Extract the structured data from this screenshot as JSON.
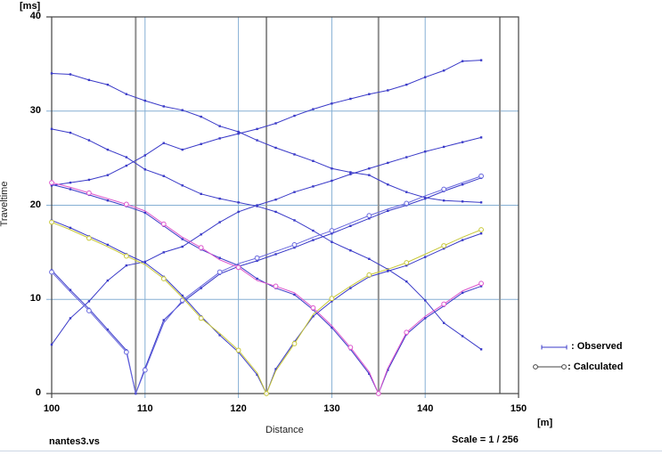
{
  "axis": {
    "y_unit": "[ms]",
    "y_title": "Traveltime",
    "x_title": "Distance",
    "x_unit": "[m]",
    "y_ticks": [
      0,
      10,
      20,
      30,
      40
    ],
    "x_ticks": [
      100,
      110,
      120,
      130,
      140,
      150
    ]
  },
  "footer": {
    "filename": "nantes3.vs",
    "scale_text": "Scale = 1 / 256"
  },
  "legend": {
    "observed_label": ": Observed",
    "calculated_label": ": Calculated"
  },
  "colors": {
    "observed": "#3a3ac8",
    "calc_109": "#6666dd",
    "calc_123": "#c8c838",
    "calc_135": "#dd55cc",
    "grid": "#85afd4",
    "source_line": "#909090",
    "axis": "#444444",
    "legend_calc_line": "#444444"
  },
  "chart_data": {
    "type": "line",
    "title": "",
    "xlabel": "Distance",
    "ylabel": "Traveltime",
    "x_unit": "[m]",
    "y_unit": "[ms]",
    "xlim": [
      100,
      150
    ],
    "ylim": [
      0,
      40
    ],
    "grid_x": [
      110,
      120,
      130,
      140
    ],
    "grid_y": [
      10,
      20,
      30
    ],
    "source_positions": [
      109,
      123,
      135,
      148
    ],
    "legend_position": "right-bottom-outside",
    "series": [
      {
        "name": "observed-offset-shot-left-near",
        "role": "observed",
        "points": [
          [
            100,
            5.2
          ],
          [
            102,
            8.0
          ],
          [
            104,
            9.8
          ],
          [
            106,
            12.0
          ],
          [
            108,
            13.6
          ],
          [
            110,
            14.0
          ],
          [
            112,
            15.0
          ],
          [
            114,
            15.6
          ],
          [
            116,
            16.9
          ],
          [
            118,
            18.2
          ],
          [
            120,
            19.3
          ],
          [
            122,
            20.0
          ],
          [
            124,
            20.6
          ],
          [
            126,
            21.4
          ],
          [
            128,
            22.0
          ],
          [
            130,
            22.6
          ],
          [
            132,
            23.3
          ],
          [
            134,
            23.9
          ],
          [
            136,
            24.5
          ],
          [
            138,
            25.1
          ],
          [
            140,
            25.7
          ],
          [
            142,
            26.2
          ],
          [
            144,
            26.7
          ],
          [
            146,
            27.2
          ]
        ]
      },
      {
        "name": "observed-offset-shot-left-far",
        "role": "observed",
        "points": [
          [
            100,
            22.1
          ],
          [
            102,
            22.4
          ],
          [
            104,
            22.7
          ],
          [
            106,
            23.2
          ],
          [
            108,
            24.2
          ],
          [
            110,
            25.3
          ],
          [
            112,
            26.6
          ],
          [
            114,
            25.9
          ],
          [
            116,
            26.5
          ],
          [
            118,
            27.1
          ],
          [
            120,
            27.6
          ],
          [
            122,
            28.1
          ],
          [
            124,
            28.7
          ],
          [
            126,
            29.5
          ],
          [
            128,
            30.2
          ],
          [
            130,
            30.8
          ],
          [
            132,
            31.3
          ],
          [
            134,
            31.8
          ],
          [
            136,
            32.2
          ],
          [
            138,
            32.8
          ],
          [
            140,
            33.6
          ],
          [
            142,
            34.3
          ],
          [
            144,
            35.3
          ],
          [
            146,
            35.4
          ]
        ]
      },
      {
        "name": "observed-shot-109",
        "role": "observed",
        "points": [
          [
            100,
            13.1
          ],
          [
            102,
            11.0
          ],
          [
            104,
            9.0
          ],
          [
            106,
            6.8
          ],
          [
            108,
            4.6
          ],
          [
            109,
            0
          ],
          [
            110,
            2.7
          ],
          [
            112,
            7.8
          ],
          [
            114,
            9.7
          ],
          [
            116,
            11.2
          ],
          [
            118,
            12.7
          ],
          [
            120,
            13.5
          ],
          [
            122,
            14.1
          ],
          [
            124,
            14.8
          ],
          [
            126,
            15.5
          ],
          [
            128,
            16.3
          ],
          [
            130,
            17.0
          ],
          [
            132,
            17.8
          ],
          [
            134,
            18.6
          ],
          [
            136,
            19.4
          ],
          [
            138,
            20.0
          ],
          [
            140,
            20.7
          ],
          [
            142,
            21.5
          ],
          [
            144,
            22.2
          ],
          [
            146,
            22.9
          ]
        ]
      },
      {
        "name": "observed-shot-123",
        "role": "observed",
        "points": [
          [
            100,
            18.4
          ],
          [
            102,
            17.6
          ],
          [
            104,
            16.7
          ],
          [
            106,
            15.8
          ],
          [
            108,
            14.8
          ],
          [
            110,
            13.9
          ],
          [
            112,
            12.4
          ],
          [
            114,
            10.4
          ],
          [
            116,
            8.2
          ],
          [
            118,
            6.2
          ],
          [
            120,
            4.4
          ],
          [
            122,
            2.0
          ],
          [
            123,
            0
          ],
          [
            124,
            2.6
          ],
          [
            126,
            5.5
          ],
          [
            128,
            8.2
          ],
          [
            130,
            9.8
          ],
          [
            132,
            11.2
          ],
          [
            134,
            12.4
          ],
          [
            136,
            13.0
          ],
          [
            138,
            13.6
          ],
          [
            140,
            14.5
          ],
          [
            142,
            15.4
          ],
          [
            144,
            16.3
          ],
          [
            146,
            17.0
          ]
        ]
      },
      {
        "name": "observed-shot-135",
        "role": "observed",
        "points": [
          [
            100,
            22.2
          ],
          [
            102,
            21.7
          ],
          [
            104,
            21.1
          ],
          [
            106,
            20.5
          ],
          [
            108,
            19.9
          ],
          [
            110,
            19.2
          ],
          [
            112,
            17.8
          ],
          [
            114,
            16.4
          ],
          [
            116,
            15.3
          ],
          [
            118,
            14.4
          ],
          [
            120,
            13.6
          ],
          [
            122,
            12.2
          ],
          [
            124,
            11.2
          ],
          [
            126,
            10.5
          ],
          [
            128,
            8.9
          ],
          [
            130,
            7.0
          ],
          [
            132,
            4.7
          ],
          [
            134,
            2.1
          ],
          [
            135,
            0
          ],
          [
            136,
            2.5
          ],
          [
            138,
            6.3
          ],
          [
            140,
            8.0
          ],
          [
            142,
            9.3
          ],
          [
            144,
            10.7
          ],
          [
            146,
            11.4
          ]
        ]
      },
      {
        "name": "observed-shot-148",
        "role": "observed",
        "points": [
          [
            100,
            28.1
          ],
          [
            102,
            27.7
          ],
          [
            104,
            26.9
          ],
          [
            106,
            25.9
          ],
          [
            108,
            25.1
          ],
          [
            110,
            23.8
          ],
          [
            112,
            23.1
          ],
          [
            114,
            22.1
          ],
          [
            116,
            21.2
          ],
          [
            118,
            20.7
          ],
          [
            120,
            20.3
          ],
          [
            122,
            19.9
          ],
          [
            124,
            19.3
          ],
          [
            126,
            18.4
          ],
          [
            128,
            17.3
          ],
          [
            130,
            16.1
          ],
          [
            132,
            15.2
          ],
          [
            134,
            14.3
          ],
          [
            136,
            13.2
          ],
          [
            138,
            11.9
          ],
          [
            140,
            9.9
          ],
          [
            142,
            7.5
          ],
          [
            144,
            6.1
          ],
          [
            146,
            4.7
          ]
        ]
      },
      {
        "name": "observed-offset-shot-right-far",
        "role": "observed",
        "points": [
          [
            100,
            34.0
          ],
          [
            102,
            33.9
          ],
          [
            104,
            33.3
          ],
          [
            106,
            32.8
          ],
          [
            108,
            31.8
          ],
          [
            110,
            31.1
          ],
          [
            112,
            30.5
          ],
          [
            114,
            30.1
          ],
          [
            116,
            29.4
          ],
          [
            118,
            28.4
          ],
          [
            120,
            27.8
          ],
          [
            122,
            26.9
          ],
          [
            124,
            26.1
          ],
          [
            126,
            25.4
          ],
          [
            128,
            24.7
          ],
          [
            130,
            23.9
          ],
          [
            132,
            23.5
          ],
          [
            134,
            23.2
          ],
          [
            136,
            22.2
          ],
          [
            138,
            21.4
          ],
          [
            140,
            20.8
          ],
          [
            142,
            20.5
          ],
          [
            144,
            20.4
          ],
          [
            146,
            20.3
          ]
        ]
      },
      {
        "name": "calculated-shot-109",
        "role": "calculated",
        "color_key": "calc_109",
        "points": [
          [
            100,
            12.9
          ],
          [
            102,
            10.8
          ],
          [
            104,
            8.8
          ],
          [
            106,
            6.6
          ],
          [
            108,
            4.4
          ],
          [
            109,
            0
          ],
          [
            110,
            2.5
          ],
          [
            112,
            7.5
          ],
          [
            114,
            9.9
          ],
          [
            116,
            11.4
          ],
          [
            118,
            12.9
          ],
          [
            120,
            13.8
          ],
          [
            122,
            14.4
          ],
          [
            124,
            15.1
          ],
          [
            126,
            15.8
          ],
          [
            128,
            16.6
          ],
          [
            130,
            17.3
          ],
          [
            132,
            18.1
          ],
          [
            134,
            18.9
          ],
          [
            136,
            19.6
          ],
          [
            138,
            20.2
          ],
          [
            140,
            21.0
          ],
          [
            142,
            21.7
          ],
          [
            144,
            22.4
          ],
          [
            146,
            23.1
          ]
        ]
      },
      {
        "name": "calculated-shot-123",
        "role": "calculated",
        "color_key": "calc_123",
        "points": [
          [
            100,
            18.2
          ],
          [
            102,
            17.4
          ],
          [
            104,
            16.5
          ],
          [
            106,
            15.6
          ],
          [
            108,
            14.6
          ],
          [
            110,
            13.7
          ],
          [
            112,
            12.2
          ],
          [
            114,
            10.2
          ],
          [
            116,
            8.0
          ],
          [
            118,
            6.4
          ],
          [
            120,
            4.6
          ],
          [
            122,
            2.2
          ],
          [
            123,
            0
          ],
          [
            124,
            2.4
          ],
          [
            126,
            5.3
          ],
          [
            128,
            8.4
          ],
          [
            130,
            10.1
          ],
          [
            132,
            11.4
          ],
          [
            134,
            12.6
          ],
          [
            136,
            13.2
          ],
          [
            138,
            13.9
          ],
          [
            140,
            14.8
          ],
          [
            142,
            15.7
          ],
          [
            144,
            16.6
          ],
          [
            146,
            17.4
          ]
        ]
      },
      {
        "name": "calculated-shot-135",
        "role": "calculated",
        "color_key": "calc_135",
        "points": [
          [
            100,
            22.4
          ],
          [
            102,
            21.9
          ],
          [
            104,
            21.3
          ],
          [
            106,
            20.7
          ],
          [
            108,
            20.1
          ],
          [
            110,
            19.4
          ],
          [
            112,
            18.0
          ],
          [
            114,
            16.6
          ],
          [
            116,
            15.5
          ],
          [
            118,
            14.2
          ],
          [
            120,
            13.4
          ],
          [
            122,
            12.0
          ],
          [
            124,
            11.4
          ],
          [
            126,
            10.7
          ],
          [
            128,
            9.1
          ],
          [
            130,
            7.2
          ],
          [
            132,
            4.9
          ],
          [
            134,
            2.3
          ],
          [
            135,
            0
          ],
          [
            136,
            2.7
          ],
          [
            138,
            6.5
          ],
          [
            140,
            8.2
          ],
          [
            142,
            9.5
          ],
          [
            144,
            10.9
          ],
          [
            146,
            11.7
          ]
        ]
      }
    ]
  }
}
